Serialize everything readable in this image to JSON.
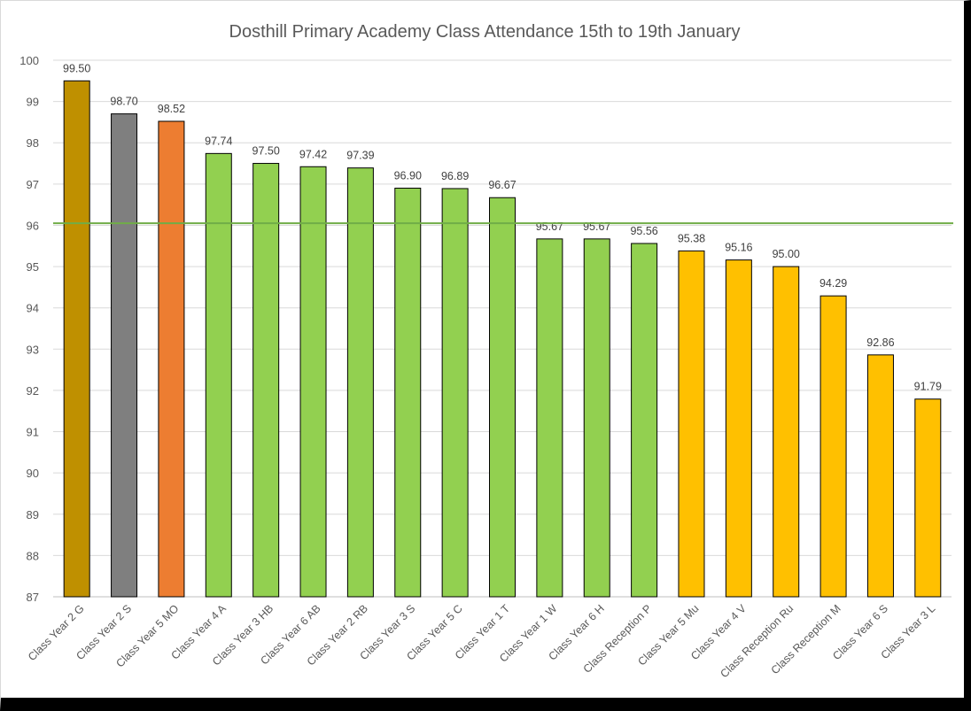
{
  "chart_data": {
    "type": "bar",
    "title": "Dosthill Primary Academy Class Attendance 15th to 19th January",
    "xlabel": "",
    "ylabel": "",
    "ylim": [
      87,
      100
    ],
    "yticks": [
      87,
      88,
      89,
      90,
      91,
      92,
      93,
      94,
      95,
      96,
      97,
      98,
      99,
      100
    ],
    "grid": true,
    "legend": "none",
    "target_line": {
      "value": 96.05,
      "color": "#70ad47"
    },
    "categories": [
      "Class Year 2 G",
      "Class Year 2 S",
      "Class Year 5 MO",
      "Class Year 4 A",
      "Class Year 3 HB",
      "Class Year 6 AB",
      "Class Year 2 RB",
      "Class Year 3 S",
      "Class Year 5 C",
      "Class Year 1 T",
      "Class Year 1 W",
      "Class Year 6 H",
      "Class Reception P",
      "Class Year 5 Mu",
      "Class Year 4 V",
      "Class Reception Ru",
      "Class Reception M",
      "Class Year 6 S",
      "Class Year 3 L"
    ],
    "values": [
      99.5,
      98.7,
      98.52,
      97.74,
      97.5,
      97.42,
      97.39,
      96.9,
      96.89,
      96.67,
      95.67,
      95.67,
      95.56,
      95.38,
      95.16,
      95.0,
      94.29,
      92.86,
      91.79
    ],
    "data_labels": [
      "99.50",
      "98.70",
      "98.52",
      "97.74",
      "97.50",
      "97.42",
      "97.39",
      "96.90",
      "96.89",
      "96.67",
      "95.67",
      "95.67",
      "95.56",
      "95.38",
      "95.16",
      "95.00",
      "94.29",
      "92.86",
      "91.79"
    ],
    "colors": [
      "#bf9000",
      "#7f7f7f",
      "#ed7d31",
      "#92d050",
      "#92d050",
      "#92d050",
      "#92d050",
      "#92d050",
      "#92d050",
      "#92d050",
      "#92d050",
      "#92d050",
      "#92d050",
      "#ffc000",
      "#ffc000",
      "#ffc000",
      "#ffc000",
      "#ffc000",
      "#ffc000"
    ]
  }
}
